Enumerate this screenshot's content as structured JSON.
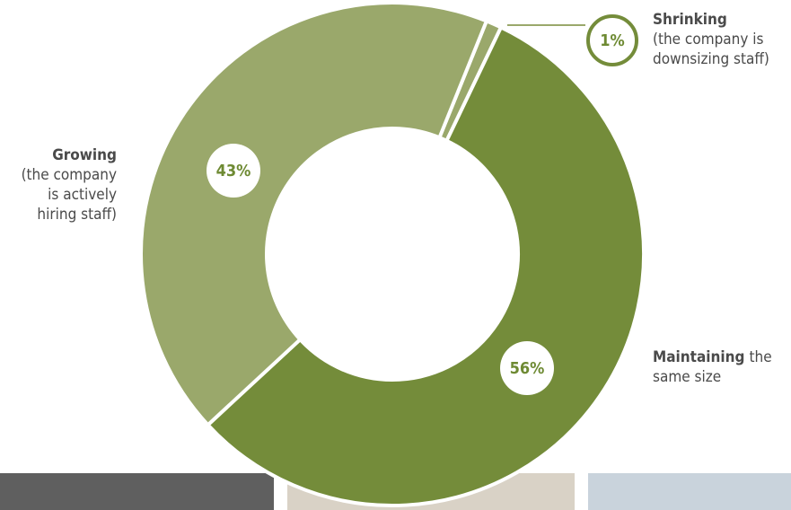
{
  "chart_data": {
    "type": "donut",
    "categories": [
      "Shrinking",
      "Maintaining",
      "Growing"
    ],
    "descriptions": [
      [
        "(the company is",
        "downsizing staff)"
      ],
      [
        "the",
        "same size"
      ],
      [
        "(the company",
        "is actively",
        "hiring staff)"
      ]
    ],
    "values": [
      1,
      56,
      43
    ],
    "value_labels": [
      "1%",
      "56%",
      "43%"
    ],
    "colors": [
      "#9aa86b",
      "#748c3a",
      "#9aa86b"
    ]
  }
}
